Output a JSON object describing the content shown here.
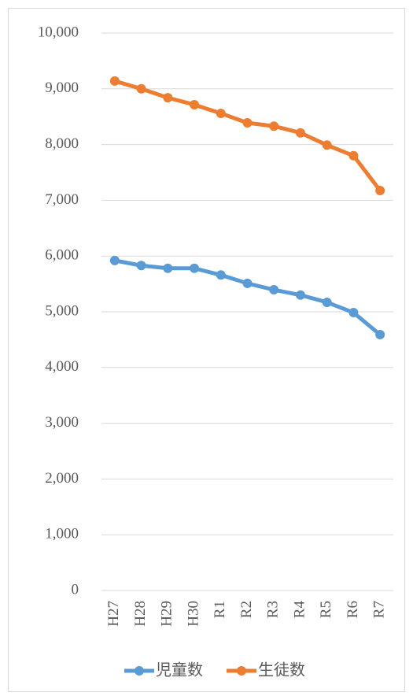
{
  "chart_data": {
    "type": "line",
    "categories": [
      "H27",
      "H28",
      "H29",
      "H30",
      "R1",
      "R2",
      "R3",
      "R4",
      "R5",
      "R6",
      "R7"
    ],
    "series": [
      {
        "name": "児童数",
        "color": "#5b9bd5",
        "values": [
          5920,
          5830,
          5780,
          5780,
          5660,
          5510,
          5395,
          5300,
          5170,
          4985,
          4590
        ]
      },
      {
        "name": "生徒数",
        "color": "#ed7d31",
        "values": [
          9140,
          9000,
          8840,
          8715,
          8560,
          8390,
          8330,
          8210,
          7990,
          7800,
          7175
        ]
      }
    ],
    "ylim": [
      0,
      10000
    ],
    "yticks": [
      0,
      {
        "value": 1000,
        "label": "1,000"
      },
      {
        "value": 2000,
        "label": "2,000"
      },
      {
        "value": 3000,
        "label": "3,000"
      },
      {
        "value": 4000,
        "label": "4,000"
      },
      {
        "value": 5000,
        "label": "5,000"
      },
      {
        "value": 6000,
        "label": "6,000"
      },
      {
        "value": 7000,
        "label": "7,000"
      },
      {
        "value": 8000,
        "label": "8,000"
      },
      {
        "value": 9000,
        "label": "9,000"
      },
      {
        "value": 10000,
        "label": "10,000"
      }
    ],
    "grid": true,
    "legend": "bottom"
  }
}
